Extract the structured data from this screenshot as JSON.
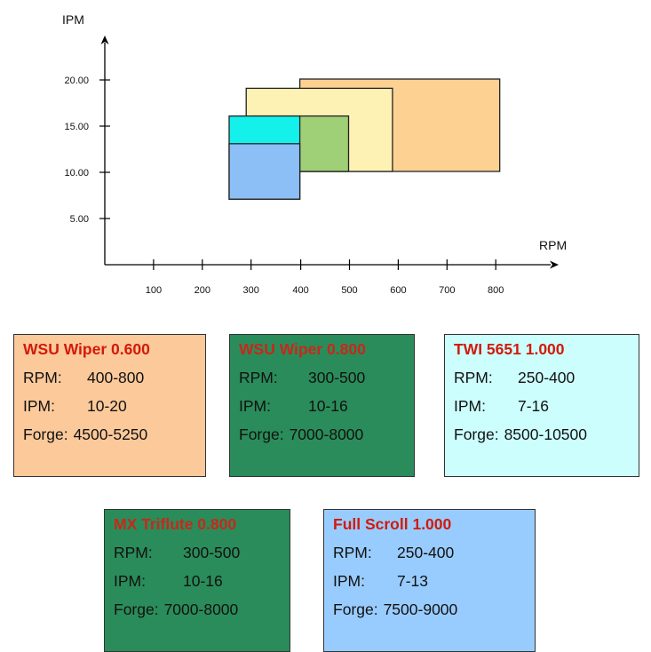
{
  "chart_data": {
    "type": "area",
    "xlabel": "RPM",
    "ylabel": "IPM",
    "x_ticks": [
      100,
      200,
      300,
      400,
      500,
      600,
      700,
      800
    ],
    "x_tick_labels": [
      "100",
      "200",
      "300",
      "400",
      "500",
      "600",
      "700",
      "800"
    ],
    "y_ticks": [
      5,
      10,
      15,
      20
    ],
    "y_tick_labels": [
      "5.00",
      "10.00",
      "15.00",
      "20.00"
    ],
    "xlim": [
      0,
      850
    ],
    "ylim": [
      0,
      23
    ],
    "series": [
      {
        "rpm": [
          400,
          810
        ],
        "ipm": [
          10,
          20
        ],
        "color": "#fcd192"
      },
      {
        "rpm": [
          290,
          590
        ],
        "ipm": [
          10,
          19
        ],
        "color": "#fdf2b4"
      },
      {
        "rpm": [
          300,
          500
        ],
        "ipm": [
          10,
          16
        ],
        "color": "#9fcf77"
      },
      {
        "rpm": [
          255,
          400
        ],
        "ipm": [
          7,
          16
        ],
        "color": "#14f0ea"
      },
      {
        "rpm": [
          255,
          400
        ],
        "ipm": [
          7,
          13
        ],
        "color": "#8bbff5"
      }
    ]
  },
  "cards": [
    {
      "title": "WSU Wiper 0.600",
      "rpm_label": "RPM:",
      "rpm": "400-800",
      "ipm_label": "IPM:",
      "ipm": "10-20",
      "forge_label": "Forge:",
      "forge": "4500-5250",
      "bg": "#fcc99a",
      "title_color": "#d21a0a"
    },
    {
      "title": "WSU Wiper 0.800",
      "rpm_label": "RPM:",
      "rpm": "300-500",
      "ipm_label": "IPM:",
      "ipm": "10-16",
      "forge_label": "Forge:",
      "forge": "7000-8000",
      "bg": "#2a8c5a",
      "title_color": "#c8281a"
    },
    {
      "title": "TWI 5651 1.000",
      "rpm_label": "RPM:",
      "rpm": "250-400",
      "ipm_label": "IPM:",
      "ipm": "7-16",
      "forge_label": "Forge:",
      "forge": "8500-10500",
      "bg": "#ccfefe",
      "title_color": "#d21a0a"
    },
    {
      "title": "MX Triflute 0.800",
      "rpm_label": "RPM:",
      "rpm": "300-500",
      "ipm_label": "IPM:",
      "ipm": "10-16",
      "forge_label": "Forge:",
      "forge": "7000-8000",
      "bg": "#2a8c5a",
      "title_color": "#c8281a"
    },
    {
      "title": "Full Scroll  1.000",
      "rpm_label": "RPM:",
      "rpm": "250-400",
      "ipm_label": "IPM:",
      "ipm": "7-13",
      "forge_label": "Forge:",
      "forge": "7500-9000",
      "bg": "#99ccfe",
      "title_color": "#d21a0a"
    }
  ]
}
